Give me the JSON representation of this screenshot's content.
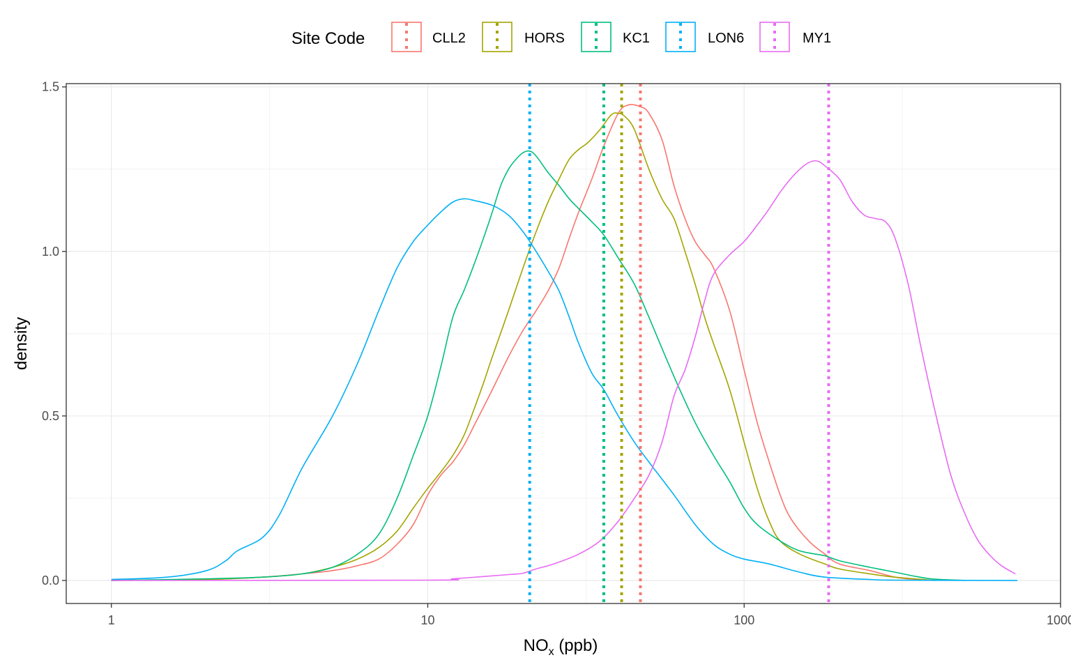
{
  "chart_data": {
    "type": "line",
    "title": "",
    "xlabel_main": "NO",
    "xlabel_sub": "x",
    "xlabel_rest": " (ppb)",
    "ylabel": "density",
    "xscale": "log10",
    "xlim": [
      0.72,
      1000
    ],
    "ylim": [
      -0.07,
      1.51
    ],
    "x_ticks": [
      1,
      10,
      100,
      1000
    ],
    "x_tick_labels": [
      "1",
      "10",
      "100",
      "1000"
    ],
    "y_ticks": [
      0.0,
      0.5,
      1.0,
      1.5
    ],
    "y_tick_labels": [
      "0.0",
      "0.5",
      "1.0",
      "1.5"
    ],
    "grid": true,
    "legend": {
      "title": "Site Code",
      "position": "top"
    },
    "series": [
      {
        "name": "CLL2",
        "color": "#F8766D",
        "median": 47,
        "points": [
          [
            1,
            0
          ],
          [
            2,
            0.003
          ],
          [
            3,
            0.01
          ],
          [
            4,
            0.02
          ],
          [
            5,
            0.03
          ],
          [
            6,
            0.045
          ],
          [
            7,
            0.065
          ],
          [
            8,
            0.11
          ],
          [
            9,
            0.17
          ],
          [
            10,
            0.26
          ],
          [
            11,
            0.32
          ],
          [
            12,
            0.36
          ],
          [
            13,
            0.41
          ],
          [
            14,
            0.47
          ],
          [
            16,
            0.58
          ],
          [
            18,
            0.68
          ],
          [
            20,
            0.76
          ],
          [
            22,
            0.82
          ],
          [
            24,
            0.88
          ],
          [
            26,
            0.95
          ],
          [
            28,
            1.04
          ],
          [
            30,
            1.12
          ],
          [
            33,
            1.22
          ],
          [
            36,
            1.32
          ],
          [
            40,
            1.42
          ],
          [
            43,
            1.445
          ],
          [
            47,
            1.44
          ],
          [
            50,
            1.42
          ],
          [
            55,
            1.34
          ],
          [
            60,
            1.2
          ],
          [
            65,
            1.1
          ],
          [
            70,
            1.03
          ],
          [
            75,
            0.99
          ],
          [
            80,
            0.95
          ],
          [
            90,
            0.82
          ],
          [
            100,
            0.64
          ],
          [
            110,
            0.48
          ],
          [
            120,
            0.36
          ],
          [
            130,
            0.26
          ],
          [
            140,
            0.19
          ],
          [
            160,
            0.12
          ],
          [
            180,
            0.08
          ],
          [
            200,
            0.05
          ],
          [
            250,
            0.03
          ],
          [
            300,
            0.01
          ],
          [
            350,
            0.003
          ],
          [
            400,
            0
          ]
        ]
      },
      {
        "name": "HORS",
        "color": "#A3A500",
        "median": 41,
        "points": [
          [
            1,
            0
          ],
          [
            2,
            0.003
          ],
          [
            3,
            0.01
          ],
          [
            4,
            0.02
          ],
          [
            5,
            0.04
          ],
          [
            6,
            0.065
          ],
          [
            7,
            0.1
          ],
          [
            8,
            0.15
          ],
          [
            9,
            0.22
          ],
          [
            10,
            0.28
          ],
          [
            11,
            0.33
          ],
          [
            12,
            0.38
          ],
          [
            13,
            0.44
          ],
          [
            14,
            0.52
          ],
          [
            15,
            0.6
          ],
          [
            16,
            0.68
          ],
          [
            18,
            0.82
          ],
          [
            20,
            0.95
          ],
          [
            22,
            1.06
          ],
          [
            24,
            1.15
          ],
          [
            26,
            1.22
          ],
          [
            28,
            1.28
          ],
          [
            30,
            1.31
          ],
          [
            32,
            1.33
          ],
          [
            35,
            1.37
          ],
          [
            38,
            1.415
          ],
          [
            40,
            1.42
          ],
          [
            42,
            1.41
          ],
          [
            45,
            1.37
          ],
          [
            50,
            1.25
          ],
          [
            55,
            1.16
          ],
          [
            60,
            1.1
          ],
          [
            65,
            1.0
          ],
          [
            70,
            0.9
          ],
          [
            75,
            0.8
          ],
          [
            80,
            0.72
          ],
          [
            90,
            0.58
          ],
          [
            100,
            0.42
          ],
          [
            110,
            0.28
          ],
          [
            120,
            0.18
          ],
          [
            130,
            0.12
          ],
          [
            150,
            0.08
          ],
          [
            180,
            0.05
          ],
          [
            200,
            0.035
          ],
          [
            250,
            0.02
          ],
          [
            300,
            0.01
          ],
          [
            400,
            0
          ]
        ]
      },
      {
        "name": "KC1",
        "color": "#00BF7D",
        "median": 36,
        "points": [
          [
            1,
            0
          ],
          [
            2,
            0.005
          ],
          [
            3,
            0.01
          ],
          [
            4,
            0.02
          ],
          [
            5,
            0.04
          ],
          [
            6,
            0.08
          ],
          [
            7,
            0.14
          ],
          [
            8,
            0.25
          ],
          [
            9,
            0.38
          ],
          [
            10,
            0.5
          ],
          [
            11,
            0.65
          ],
          [
            12,
            0.8
          ],
          [
            13,
            0.88
          ],
          [
            14,
            0.96
          ],
          [
            15,
            1.04
          ],
          [
            16,
            1.12
          ],
          [
            17,
            1.2
          ],
          [
            18,
            1.25
          ],
          [
            19,
            1.28
          ],
          [
            20,
            1.3
          ],
          [
            21,
            1.305
          ],
          [
            22,
            1.29
          ],
          [
            24,
            1.24
          ],
          [
            26,
            1.2
          ],
          [
            28,
            1.16
          ],
          [
            30,
            1.13
          ],
          [
            33,
            1.09
          ],
          [
            36,
            1.05
          ],
          [
            40,
            0.98
          ],
          [
            45,
            0.9
          ],
          [
            50,
            0.8
          ],
          [
            60,
            0.62
          ],
          [
            70,
            0.48
          ],
          [
            80,
            0.38
          ],
          [
            90,
            0.3
          ],
          [
            100,
            0.22
          ],
          [
            110,
            0.17
          ],
          [
            130,
            0.12
          ],
          [
            150,
            0.09
          ],
          [
            180,
            0.075
          ],
          [
            200,
            0.06
          ],
          [
            250,
            0.04
          ],
          [
            300,
            0.025
          ],
          [
            350,
            0.012
          ],
          [
            400,
            0.004
          ],
          [
            500,
            0
          ]
        ]
      },
      {
        "name": "LON6",
        "color": "#00B0F6",
        "median": 21,
        "points": [
          [
            1,
            0.003
          ],
          [
            1.5,
            0.01
          ],
          [
            2,
            0.03
          ],
          [
            2.3,
            0.06
          ],
          [
            2.5,
            0.09
          ],
          [
            3,
            0.13
          ],
          [
            3.4,
            0.2
          ],
          [
            4,
            0.34
          ],
          [
            5,
            0.5
          ],
          [
            6,
            0.66
          ],
          [
            7,
            0.82
          ],
          [
            8,
            0.95
          ],
          [
            9,
            1.03
          ],
          [
            10,
            1.08
          ],
          [
            11,
            1.12
          ],
          [
            12,
            1.15
          ],
          [
            13,
            1.16
          ],
          [
            14,
            1.155
          ],
          [
            16,
            1.14
          ],
          [
            18,
            1.11
          ],
          [
            20,
            1.06
          ],
          [
            22,
            1.0
          ],
          [
            24,
            0.94
          ],
          [
            26,
            0.88
          ],
          [
            28,
            0.8
          ],
          [
            30,
            0.72
          ],
          [
            33,
            0.63
          ],
          [
            36,
            0.58
          ],
          [
            40,
            0.5
          ],
          [
            45,
            0.42
          ],
          [
            50,
            0.36
          ],
          [
            60,
            0.26
          ],
          [
            70,
            0.17
          ],
          [
            80,
            0.11
          ],
          [
            90,
            0.08
          ],
          [
            100,
            0.065
          ],
          [
            120,
            0.05
          ],
          [
            150,
            0.025
          ],
          [
            180,
            0.01
          ],
          [
            250,
            0.003
          ],
          [
            300,
            0.001
          ],
          [
            730,
            0
          ]
        ]
      },
      {
        "name": "MY1",
        "color": "#E76BF3",
        "median": 185,
        "points": [
          [
            1,
            0
          ],
          [
            10,
            0.001
          ],
          [
            12,
            0.005
          ],
          [
            15,
            0.012
          ],
          [
            18,
            0.018
          ],
          [
            20,
            0.022
          ],
          [
            22,
            0.035
          ],
          [
            25,
            0.05
          ],
          [
            30,
            0.08
          ],
          [
            35,
            0.12
          ],
          [
            40,
            0.18
          ],
          [
            45,
            0.25
          ],
          [
            50,
            0.32
          ],
          [
            55,
            0.42
          ],
          [
            60,
            0.56
          ],
          [
            65,
            0.64
          ],
          [
            70,
            0.74
          ],
          [
            75,
            0.85
          ],
          [
            80,
            0.93
          ],
          [
            90,
            0.99
          ],
          [
            100,
            1.03
          ],
          [
            110,
            1.08
          ],
          [
            120,
            1.13
          ],
          [
            130,
            1.18
          ],
          [
            140,
            1.22
          ],
          [
            150,
            1.25
          ],
          [
            160,
            1.27
          ],
          [
            170,
            1.275
          ],
          [
            180,
            1.26
          ],
          [
            200,
            1.22
          ],
          [
            220,
            1.15
          ],
          [
            240,
            1.11
          ],
          [
            260,
            1.1
          ],
          [
            280,
            1.09
          ],
          [
            300,
            1.04
          ],
          [
            330,
            0.9
          ],
          [
            360,
            0.72
          ],
          [
            400,
            0.52
          ],
          [
            450,
            0.32
          ],
          [
            500,
            0.2
          ],
          [
            550,
            0.12
          ],
          [
            600,
            0.075
          ],
          [
            650,
            0.045
          ],
          [
            720,
            0.02
          ]
        ]
      }
    ]
  }
}
